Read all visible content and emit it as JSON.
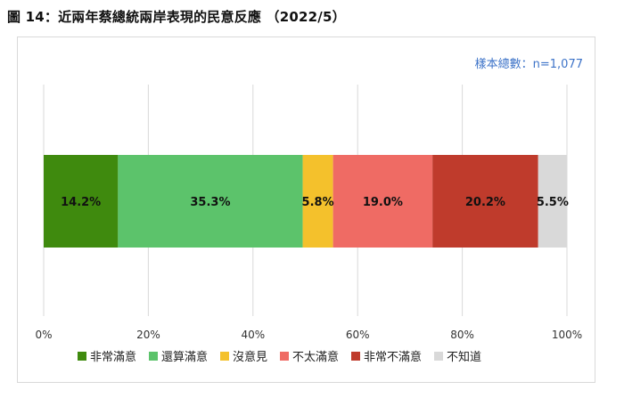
{
  "figure_title": "圖 14：近兩年蔡總統兩岸表現的民意反應 （2022/5）",
  "sample_note": "樣本總數：n=1,077",
  "colors": {
    "very_satisfied": "#3f8a0e",
    "satisfied": "#5cc36b",
    "no_opinion": "#f4c12c",
    "dissatisfied": "#ef6b64",
    "very_dissatisfied": "#bf3b2c",
    "unknown": "#d9d9d9",
    "note_text": "#3d73c8"
  },
  "chart_data": {
    "type": "bar",
    "orientation": "horizontal",
    "stacked": true,
    "title": "",
    "xlabel": "",
    "ylabel": "",
    "xlim": [
      0,
      100
    ],
    "x_ticks": [
      "0%",
      "20%",
      "40%",
      "60%",
      "80%",
      "100%"
    ],
    "grid": true,
    "legend": "bottom",
    "series": [
      {
        "name": "非常滿意",
        "value": 14.2,
        "label": "14.2%",
        "color": "#3f8a0e"
      },
      {
        "name": "還算滿意",
        "value": 35.3,
        "label": "35.3%",
        "color": "#5cc36b"
      },
      {
        "name": "沒意見",
        "value": 5.8,
        "label": "5.8%",
        "color": "#f4c12c"
      },
      {
        "name": "不太滿意",
        "value": 19.0,
        "label": "19.0%",
        "color": "#ef6b64"
      },
      {
        "name": "非常不滿意",
        "value": 20.2,
        "label": "20.2%",
        "color": "#bf3b2c"
      },
      {
        "name": "不知道",
        "value": 5.5,
        "label": "5.5%",
        "color": "#d9d9d9"
      }
    ]
  }
}
